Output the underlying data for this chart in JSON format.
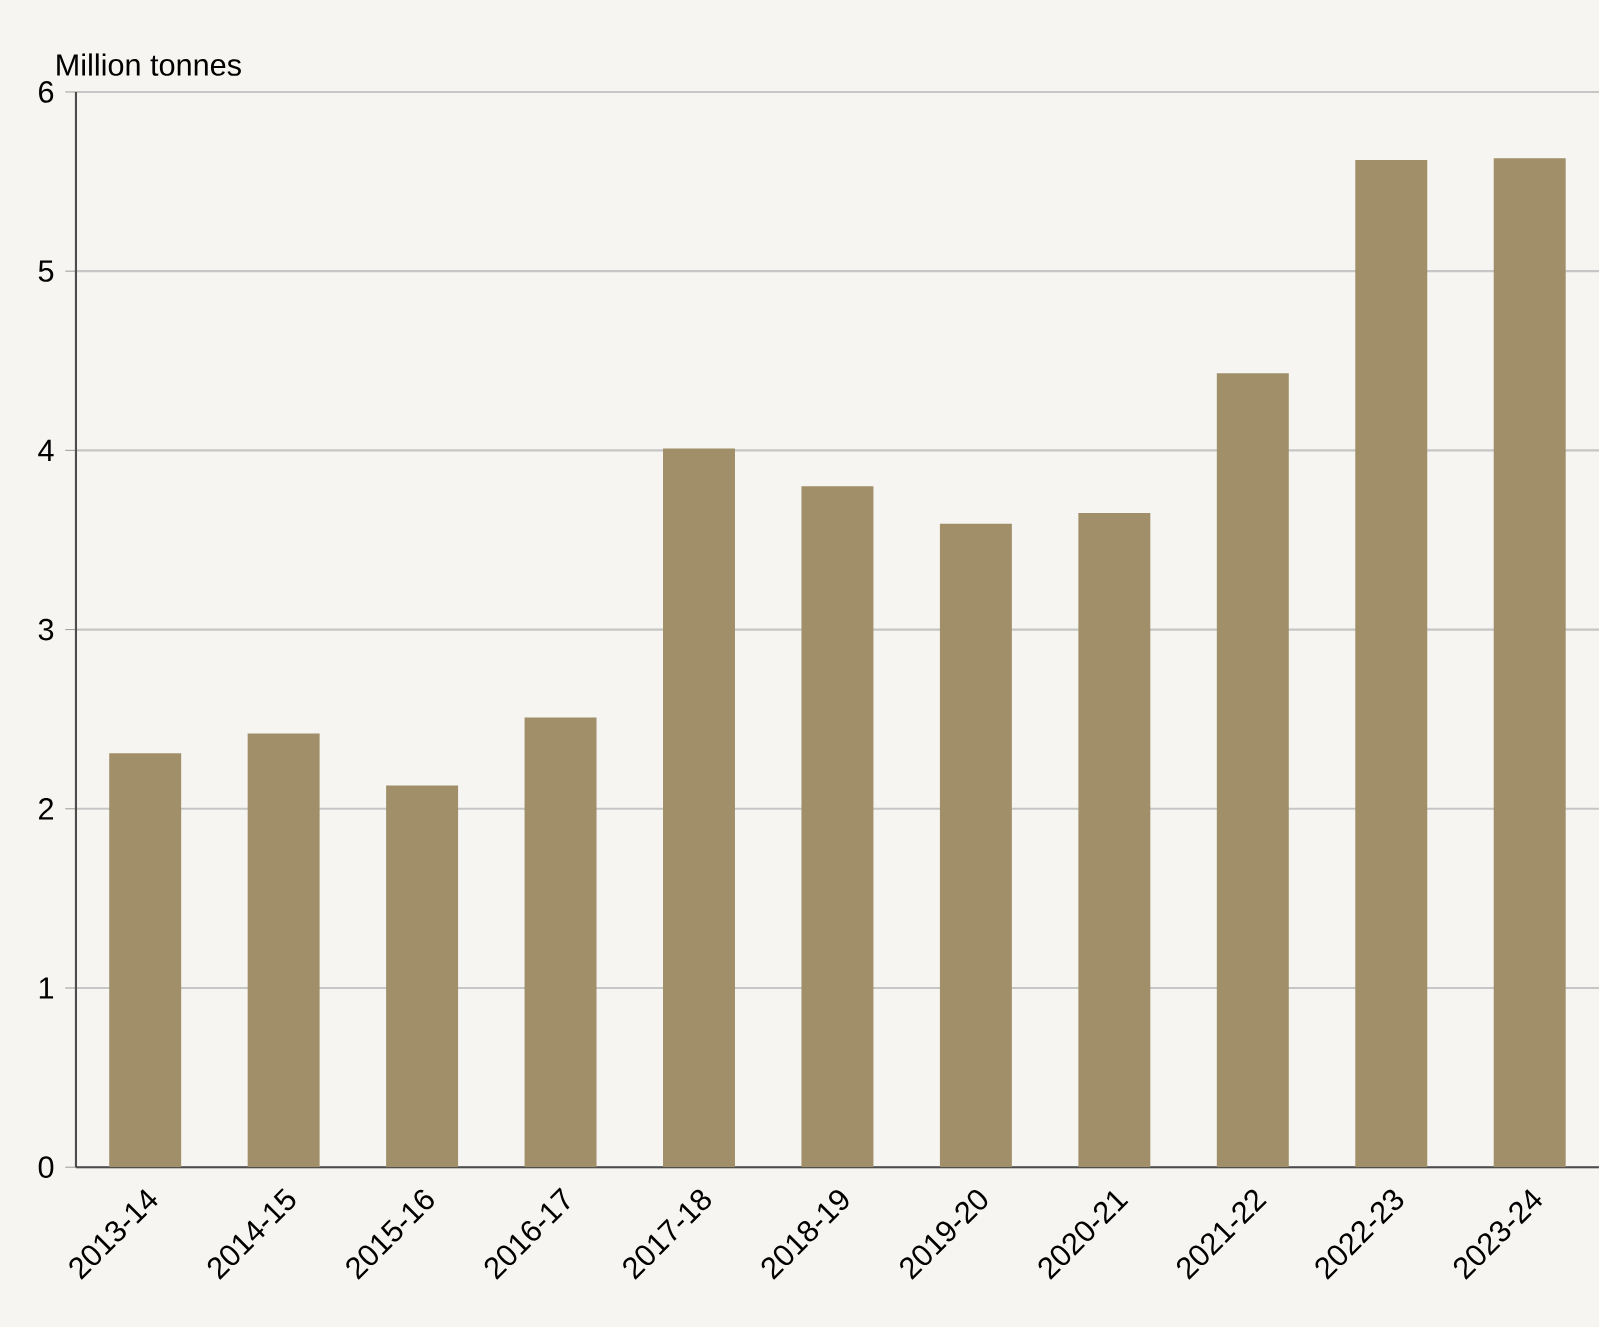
{
  "chart_data": {
    "type": "bar",
    "ylabel": "Million tonnes",
    "categories": [
      "2013-14",
      "2014-15",
      "2015-16",
      "2016-17",
      "2017-18",
      "2018-19",
      "2019-20",
      "2020-21",
      "2021-22",
      "2022-23",
      "2023-24"
    ],
    "values": [
      2.31,
      2.42,
      2.13,
      2.51,
      4.01,
      3.8,
      3.59,
      3.65,
      4.43,
      5.62,
      5.63
    ],
    "color": "#a08f68",
    "ylim": [
      0,
      6
    ],
    "yticks": [
      0,
      1,
      2,
      3,
      4,
      5,
      6
    ],
    "grid": "y"
  }
}
